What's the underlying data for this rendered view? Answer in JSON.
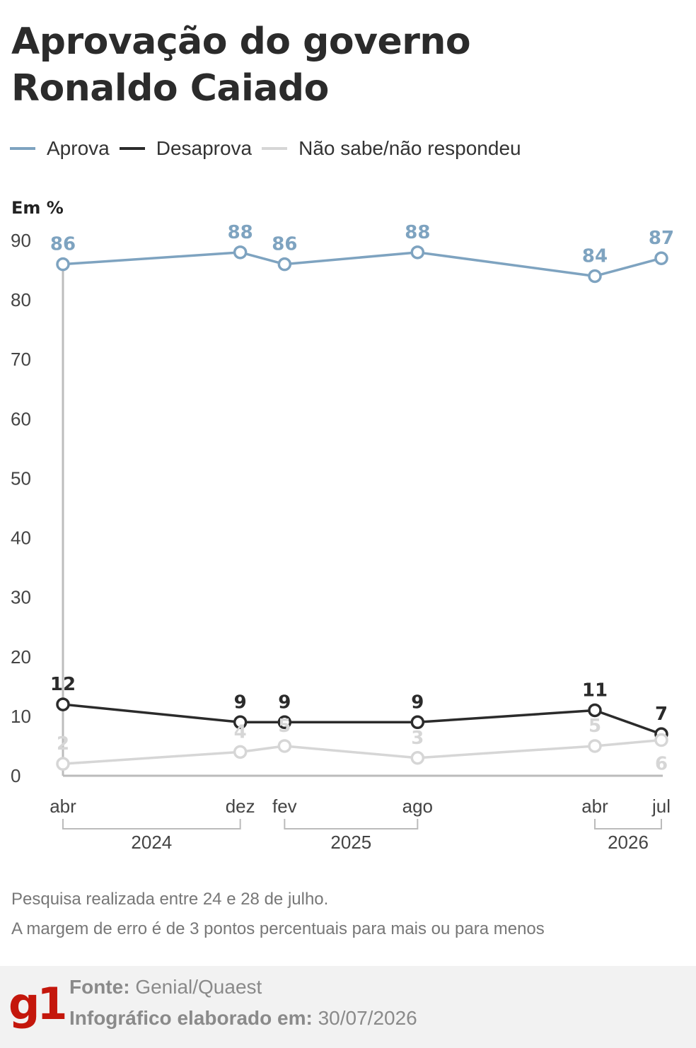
{
  "title": {
    "line1": "Aprovação do governo",
    "line2": "Ronaldo Caiado"
  },
  "legend": [
    {
      "label": "Aprova",
      "color": "#7ea3c0"
    },
    {
      "label": "Desaprova",
      "color": "#2b2b2b"
    },
    {
      "label": "Não sabe/não respondeu",
      "color": "#d6d6d6"
    }
  ],
  "unit_label": "Em %",
  "chart_data": {
    "type": "line",
    "ylabel": "Em %",
    "ylim": [
      0,
      90
    ],
    "yticks": [
      0,
      10,
      20,
      30,
      40,
      50,
      60,
      70,
      80,
      90
    ],
    "x": [
      "2024-04",
      "2024-12",
      "2025-02",
      "2025-08",
      "2026-04",
      "2026-07"
    ],
    "x_tick_labels": [
      "abr",
      "dez",
      "fev",
      "ago",
      "abr",
      "jul"
    ],
    "years": [
      {
        "label": "2024",
        "from": "2024-04",
        "to": "2024-12"
      },
      {
        "label": "2025",
        "from": "2025-02",
        "to": "2025-08"
      },
      {
        "label": "2026",
        "from": "2026-04",
        "to": "2026-07"
      }
    ],
    "series": [
      {
        "name": "Aprova",
        "color": "#7ea3c0",
        "values": [
          86,
          88,
          86,
          88,
          84,
          87
        ]
      },
      {
        "name": "Desaprova",
        "color": "#2b2b2b",
        "values": [
          12,
          9,
          9,
          9,
          11,
          7
        ]
      },
      {
        "name": "Não sabe/não respondeu",
        "color": "#d6d6d6",
        "values": [
          2,
          4,
          5,
          3,
          5,
          6
        ]
      }
    ],
    "grid": false,
    "legend_position": "top-left"
  },
  "notes": [
    "Pesquisa realizada entre 24 e 28 de julho.",
    "A margem de erro é de 3 pontos percentuais para mais ou para menos"
  ],
  "footer": {
    "logo": "g1",
    "source_label": "Fonte:",
    "source_value": "Genial/Quaest",
    "date_label": "Infográfico elaborado em:",
    "date_value": "30/07/2026"
  }
}
